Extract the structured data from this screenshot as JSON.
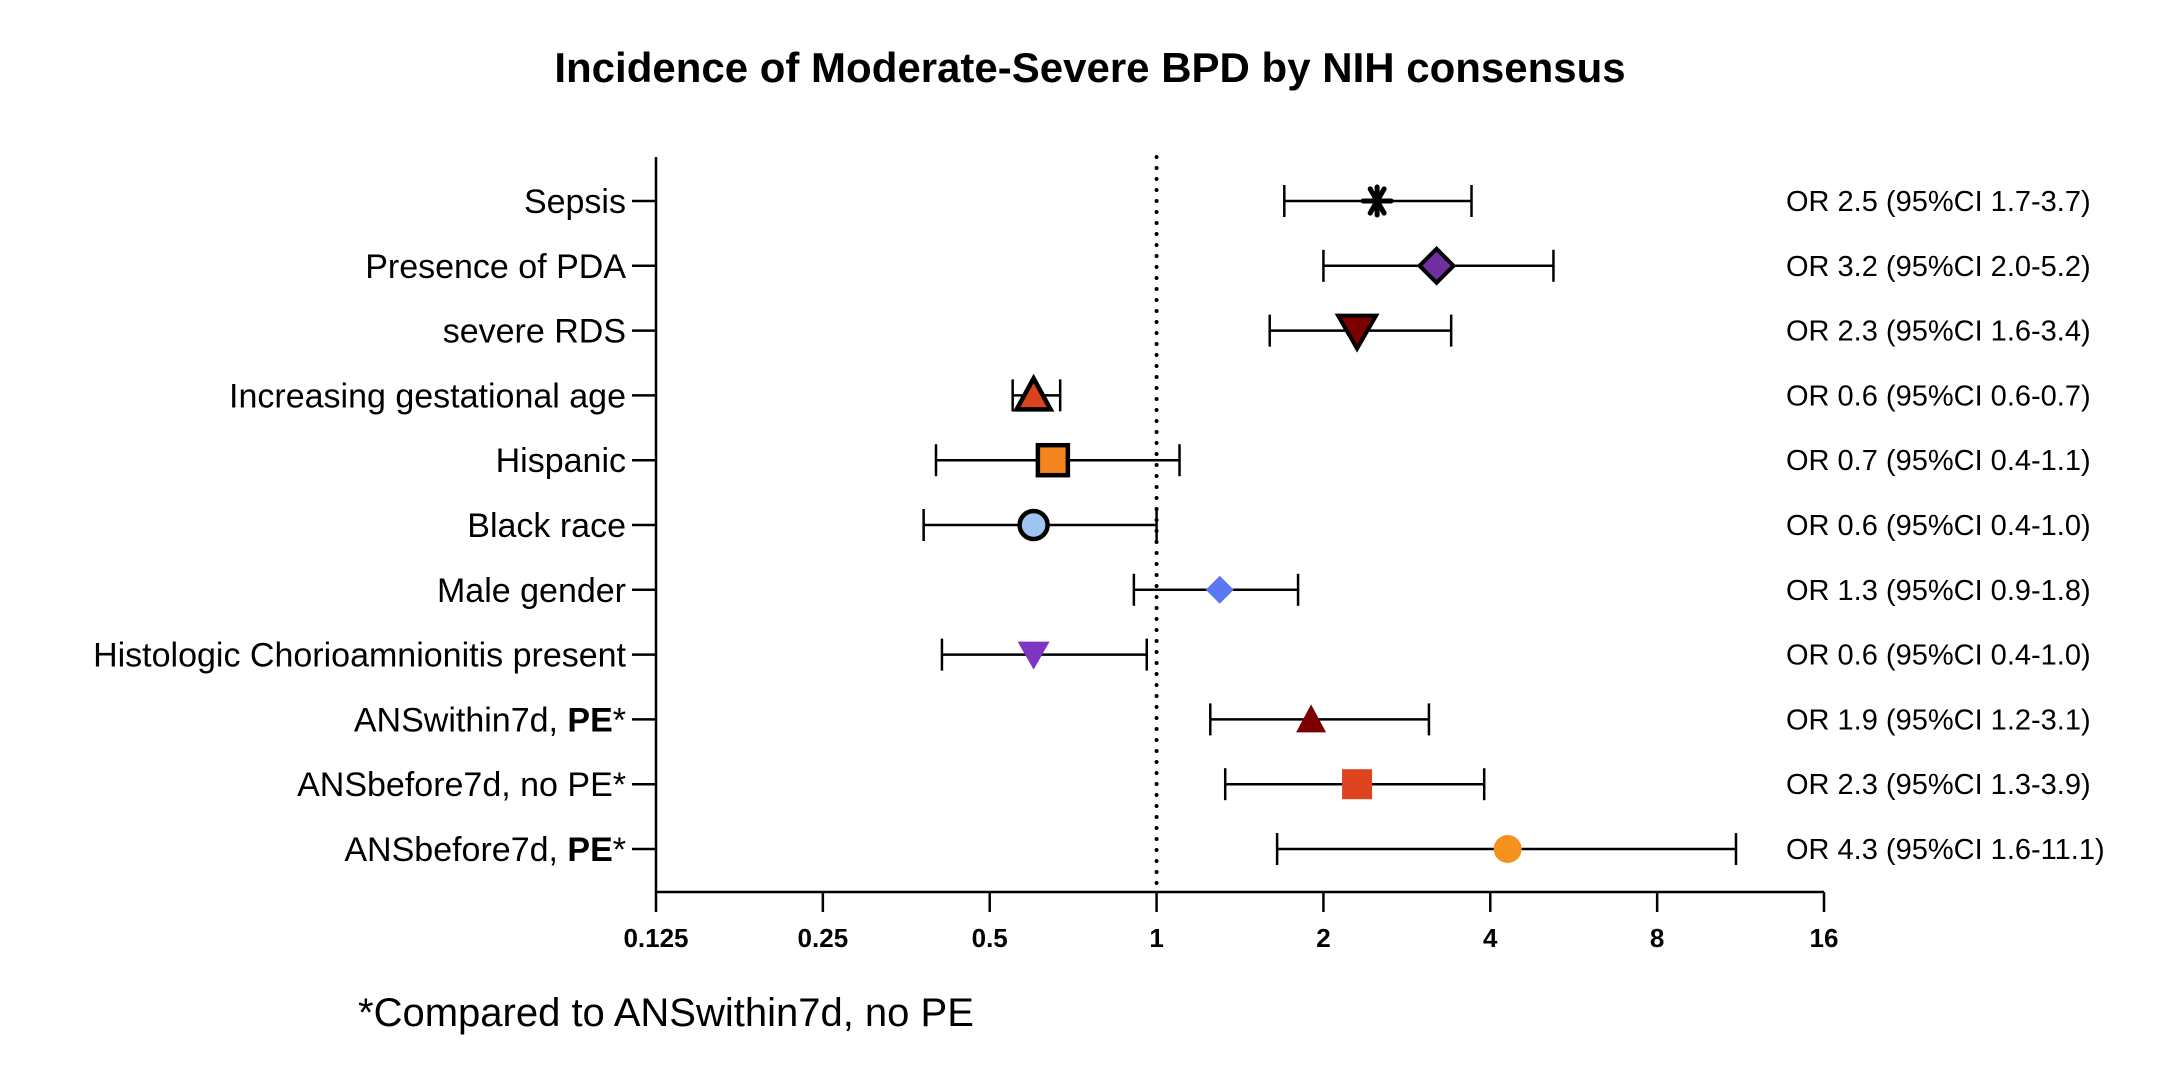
{
  "chart_data": {
    "type": "scatter",
    "subtype": "forest-plot",
    "title": "Incidence of Moderate-Severe BPD by NIH consensus",
    "xlabel": "",
    "ylabel": "",
    "x_scale": "log2",
    "xlim": [
      0.125,
      16
    ],
    "x_ticks": [
      "0.125",
      "0.25",
      "0.5",
      "1",
      "2",
      "4",
      "8",
      "16"
    ],
    "reference_line": 1,
    "grid": false,
    "rows": [
      {
        "label": "Sepsis",
        "label_parts": [
          {
            "text": "Sepsis",
            "bold": false
          }
        ],
        "or": 2.5,
        "ci_low": 1.7,
        "ci_high": 3.7,
        "annotation": "OR 2.5 (95%CI 1.7-3.7)",
        "marker": "asterisk",
        "color": "#000000"
      },
      {
        "label": "Presence of PDA",
        "label_parts": [
          {
            "text": "Presence of PDA",
            "bold": false
          }
        ],
        "or": 3.2,
        "ci_low": 2.0,
        "ci_high": 5.2,
        "annotation": "OR 3.2 (95%CI 2.0-5.2)",
        "marker": "diamond-outlined",
        "color": "#7030a0"
      },
      {
        "label": "severe RDS",
        "label_parts": [
          {
            "text": "severe RDS",
            "bold": false
          }
        ],
        "or": 2.3,
        "ci_low": 1.6,
        "ci_high": 3.4,
        "annotation": "OR 2.3 (95%CI 1.6-3.4)",
        "marker": "triangle-down-outlined",
        "color": "#7b0000"
      },
      {
        "label": "Increasing gestational age",
        "label_parts": [
          {
            "text": "Increasing gestational age",
            "bold": false
          }
        ],
        "or": 0.6,
        "ci_low": 0.55,
        "ci_high": 0.67,
        "annotation": "OR 0.6 (95%CI 0.6-0.7)",
        "marker": "triangle-up-outlined",
        "color": "#d9441e"
      },
      {
        "label": "Hispanic",
        "label_parts": [
          {
            "text": "Hispanic",
            "bold": false
          }
        ],
        "or": 0.65,
        "ci_low": 0.4,
        "ci_high": 1.1,
        "annotation": "OR 0.7 (95%CI 0.4-1.1)",
        "marker": "square-outlined",
        "color": "#f5861f"
      },
      {
        "label": "Black race",
        "label_parts": [
          {
            "text": "Black race",
            "bold": false
          }
        ],
        "or": 0.6,
        "ci_low": 0.38,
        "ci_high": 1.0,
        "annotation": "OR 0.6 (95%CI 0.4-1.0)",
        "marker": "circle-outlined",
        "color": "#9ec5f0"
      },
      {
        "label": "Male gender",
        "label_parts": [
          {
            "text": "Male gender",
            "bold": false
          }
        ],
        "or": 1.3,
        "ci_low": 0.91,
        "ci_high": 1.8,
        "annotation": "OR 1.3 (95%CI 0.9-1.8)",
        "marker": "diamond",
        "color": "#5b78f2"
      },
      {
        "label": "Histologic Chorioamnionitis present",
        "label_parts": [
          {
            "text": "Histologic Chorioamnionitis present",
            "bold": false
          }
        ],
        "or": 0.6,
        "ci_low": 0.41,
        "ci_high": 0.96,
        "annotation": "OR 0.6 (95%CI 0.4-1.0)",
        "marker": "triangle-down",
        "color": "#7e35c4"
      },
      {
        "label": "ANSwithin7d, PE*",
        "label_parts": [
          {
            "text": "ANSwithin7d, ",
            "bold": false
          },
          {
            "text": "PE",
            "bold": true
          },
          {
            "text": "*",
            "bold": false
          }
        ],
        "or": 1.9,
        "ci_low": 1.25,
        "ci_high": 3.1,
        "annotation": "OR 1.9 (95%CI 1.2-3.1)",
        "marker": "triangle-up",
        "color": "#7b0000"
      },
      {
        "label": "ANSbefore7d, no PE*",
        "label_parts": [
          {
            "text": "ANSbefore7d, no PE*",
            "bold": false
          }
        ],
        "or": 2.3,
        "ci_low": 1.33,
        "ci_high": 3.9,
        "annotation": "OR 2.3 (95%CI 1.3-3.9)",
        "marker": "square",
        "color": "#e0441f"
      },
      {
        "label": "ANSbefore7d, PE*",
        "label_parts": [
          {
            "text": "ANSbefore7d, ",
            "bold": false
          },
          {
            "text": "PE",
            "bold": true
          },
          {
            "text": "*",
            "bold": false
          }
        ],
        "or": 4.3,
        "ci_low": 1.65,
        "ci_high": 11.1,
        "annotation": "OR 4.3 (95%CI 1.6-11.1)",
        "marker": "circle",
        "color": "#f5921e"
      }
    ],
    "footnote": "*Compared to ANSwithin7d, no PE"
  }
}
